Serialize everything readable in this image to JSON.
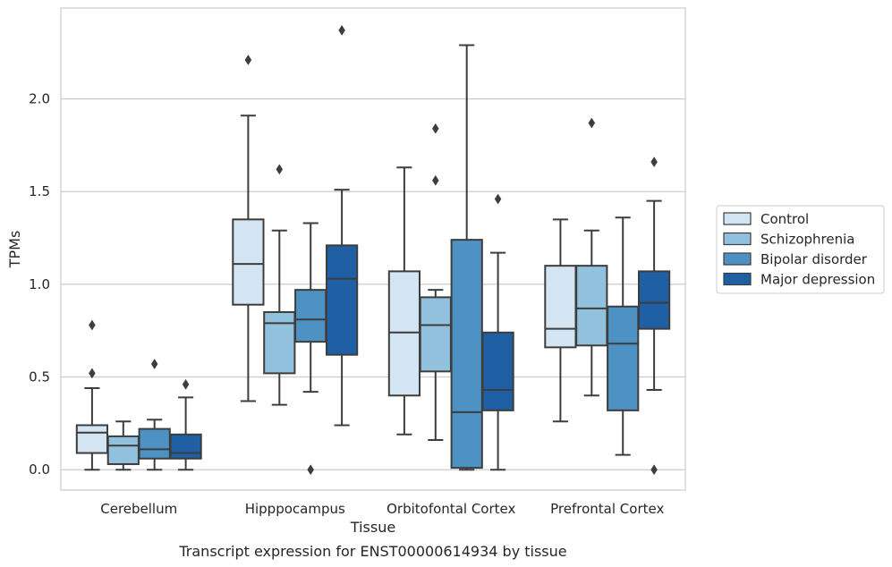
{
  "chart_data": {
    "type": "box",
    "title": "",
    "caption": "Transcript expression for ENST00000614934 by tissue",
    "xlabel": "Tissue",
    "ylabel": "TPMs",
    "ylim": [
      -0.11,
      2.49
    ],
    "yticks": [
      "0.0",
      "0.5",
      "1.0",
      "1.5",
      "2.0"
    ],
    "grid": "horizontal",
    "legend_position": "right",
    "categories": [
      "Cerebellum",
      "Hipppocampus",
      "Orbitofontal Cortex",
      "Prefrontal Cortex"
    ],
    "series": [
      {
        "name": "Control",
        "color": "#d3e4f3",
        "boxes": [
          {
            "whisker_low": 0.0,
            "q1": 0.09,
            "median": 0.2,
            "q3": 0.24,
            "whisker_high": 0.44,
            "outliers": [
              0.52,
              0.78
            ]
          },
          {
            "whisker_low": 0.37,
            "q1": 0.89,
            "median": 1.11,
            "q3": 1.35,
            "whisker_high": 1.91,
            "outliers": [
              2.21
            ]
          },
          {
            "whisker_low": 0.19,
            "q1": 0.4,
            "median": 0.74,
            "q3": 1.07,
            "whisker_high": 1.63,
            "outliers": []
          },
          {
            "whisker_low": 0.26,
            "q1": 0.66,
            "median": 0.76,
            "q3": 1.1,
            "whisker_high": 1.35,
            "outliers": []
          }
        ]
      },
      {
        "name": "Schizophrenia",
        "color": "#92c1dd",
        "boxes": [
          {
            "whisker_low": 0.0,
            "q1": 0.03,
            "median": 0.13,
            "q3": 0.18,
            "whisker_high": 0.26,
            "outliers": []
          },
          {
            "whisker_low": 0.35,
            "q1": 0.52,
            "median": 0.79,
            "q3": 0.85,
            "whisker_high": 1.29,
            "outliers": [
              1.62
            ]
          },
          {
            "whisker_low": 0.16,
            "q1": 0.53,
            "median": 0.78,
            "q3": 0.93,
            "whisker_high": 0.97,
            "outliers": [
              1.56,
              1.84
            ]
          },
          {
            "whisker_low": 0.4,
            "q1": 0.67,
            "median": 0.87,
            "q3": 1.1,
            "whisker_high": 1.29,
            "outliers": [
              1.87
            ]
          }
        ]
      },
      {
        "name": "Bipolar disorder",
        "color": "#4d92c2",
        "boxes": [
          {
            "whisker_low": 0.0,
            "q1": 0.06,
            "median": 0.11,
            "q3": 0.22,
            "whisker_high": 0.27,
            "outliers": [
              0.57
            ]
          },
          {
            "whisker_low": 0.42,
            "q1": 0.69,
            "median": 0.81,
            "q3": 0.97,
            "whisker_high": 1.33,
            "outliers": [
              0.0
            ]
          },
          {
            "whisker_low": 0.0,
            "q1": 0.01,
            "median": 0.31,
            "q3": 1.24,
            "whisker_high": 2.29,
            "outliers": []
          },
          {
            "whisker_low": 0.08,
            "q1": 0.32,
            "median": 0.68,
            "q3": 0.88,
            "whisker_high": 1.36,
            "outliers": []
          }
        ]
      },
      {
        "name": "Major depression",
        "color": "#1f5fa3",
        "boxes": [
          {
            "whisker_low": 0.0,
            "q1": 0.06,
            "median": 0.09,
            "q3": 0.19,
            "whisker_high": 0.39,
            "outliers": [
              0.46
            ]
          },
          {
            "whisker_low": 0.24,
            "q1": 0.62,
            "median": 1.03,
            "q3": 1.21,
            "whisker_high": 1.51,
            "outliers": [
              2.37
            ]
          },
          {
            "whisker_low": 0.0,
            "q1": 0.32,
            "median": 0.43,
            "q3": 0.74,
            "whisker_high": 1.17,
            "outliers": [
              1.46
            ]
          },
          {
            "whisker_low": 0.43,
            "q1": 0.76,
            "median": 0.9,
            "q3": 1.07,
            "whisker_high": 1.45,
            "outliers": [
              0.0,
              1.66
            ]
          }
        ]
      }
    ]
  }
}
